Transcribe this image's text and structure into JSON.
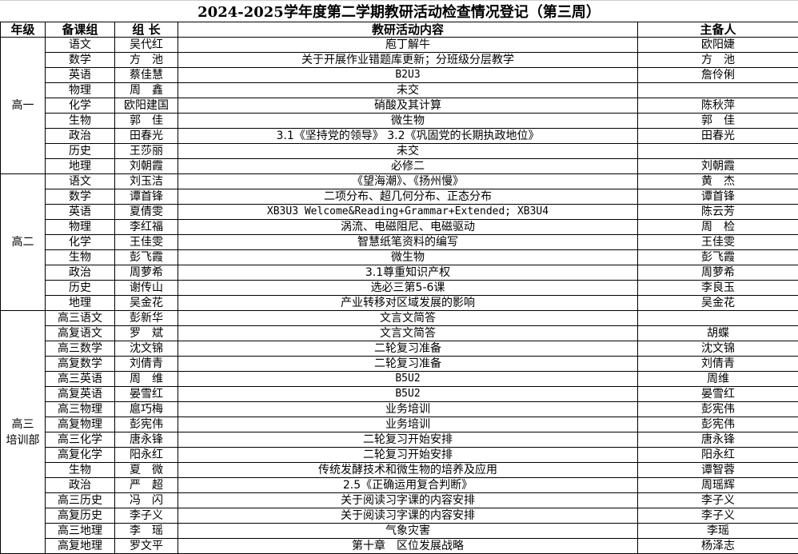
{
  "title": "2024-2025学年度第二学期教研活动检查情况登记（第三周）",
  "headers": [
    "年级",
    "备课组",
    "组 长",
    "教研活动内容",
    "主备人"
  ],
  "sections": [
    {
      "grade": "高一",
      "rows": [
        {
          "group": "语文",
          "leader": "吴代红",
          "content": "庖丁解牛",
          "preparer": "欧阳婕"
        },
        {
          "group": "数学",
          "leader": "方　池",
          "content": "关于开展作业错题库更新；分班级分层教学",
          "preparer": "方　池"
        },
        {
          "group": "英语",
          "leader": "蔡佳慧",
          "content": "B2U3",
          "preparer": "詹伶俐"
        },
        {
          "group": "物理",
          "leader": "周　鑫",
          "content": "未交",
          "preparer": ""
        },
        {
          "group": "化学",
          "leader": "欧阳建国",
          "content": "硝酸及其计算",
          "preparer": "陈秋萍"
        },
        {
          "group": "生物",
          "leader": "郭　佳",
          "content": "微生物",
          "preparer": "郭　佳"
        },
        {
          "group": "政治",
          "leader": "田春光",
          "content": "3.1《坚持党的领导》 3.2《巩固党的长期执政地位》",
          "preparer": "田春光"
        },
        {
          "group": "历史",
          "leader": "王莎丽",
          "content": "未交",
          "preparer": ""
        },
        {
          "group": "地理",
          "leader": "刘朝霞",
          "content": "必修二",
          "preparer": "刘朝霞"
        }
      ]
    },
    {
      "grade": "高二",
      "rows": [
        {
          "group": "语文",
          "leader": "刘玉洁",
          "content": "《望海潮》、《扬州慢》",
          "preparer": "黄　杰"
        },
        {
          "group": "数学",
          "leader": "谭首锋",
          "content": "二项分布、超几何分布、正态分布",
          "preparer": "谭首锋"
        },
        {
          "group": "英语",
          "leader": "夏倩雯",
          "content": "XB3U3 Welcome&Reading+Grammar+Extended; XB3U4",
          "preparer": "陈云芳"
        },
        {
          "group": "物理",
          "leader": "李红福",
          "content": "涡流、电磁阻尼、电磁驱动",
          "preparer": "周　检"
        },
        {
          "group": "化学",
          "leader": "王佳雯",
          "content": "智慧纸笔资料的编写",
          "preparer": "王佳雯"
        },
        {
          "group": "生物",
          "leader": "彭飞霞",
          "content": "微生物",
          "preparer": "彭飞霞"
        },
        {
          "group": "政治",
          "leader": "周萝希",
          "content": "3.1尊重知识产权",
          "preparer": "周萝希"
        },
        {
          "group": "历史",
          "leader": "谢传山",
          "content": "选必三第5-6课",
          "preparer": "李良玉"
        },
        {
          "group": "地理",
          "leader": "吴金花",
          "content": "产业转移对区域发展的影响",
          "preparer": "吴金花"
        }
      ]
    },
    {
      "grade": "高三\n培训部",
      "rows": [
        {
          "group": "高三语文",
          "leader": "彭新华",
          "content": "文言文简答",
          "preparer": ""
        },
        {
          "group": "高复语文",
          "leader": "罗　斌",
          "content": "文言文简答",
          "preparer": "胡蝶"
        },
        {
          "group": "高三数学",
          "leader": "沈文锦",
          "content": "二轮复习准备",
          "preparer": "沈文锦"
        },
        {
          "group": "高复数学",
          "leader": "刘倩青",
          "content": "二轮复习准备",
          "preparer": "刘倩青"
        },
        {
          "group": "高三英语",
          "leader": "周　维",
          "content": "B5U2",
          "preparer": "周维"
        },
        {
          "group": "高复英语",
          "leader": "晏雪红",
          "content": "B5U2",
          "preparer": "晏雪红"
        },
        {
          "group": "高三物理",
          "leader": "扈巧梅",
          "content": "业务培训",
          "preparer": "彭宪伟"
        },
        {
          "group": "高复物理",
          "leader": "彭宪伟",
          "content": "业务培训",
          "preparer": "彭宪伟"
        },
        {
          "group": "高三化学",
          "leader": "唐永锋",
          "content": "二轮复习开始安排",
          "preparer": "唐永锋"
        },
        {
          "group": "高复化学",
          "leader": "阳永红",
          "content": "二轮复习开始安排",
          "preparer": "阳永红"
        },
        {
          "group": "生物",
          "leader": "夏　微",
          "content": "传统发酵技术和微生物的培养及应用",
          "preparer": "谭智蓉"
        },
        {
          "group": "政治",
          "leader": "严　超",
          "content": "2.5《正确运用复合判断》",
          "preparer": "周瑶辉"
        },
        {
          "group": "高三历史",
          "leader": "冯　闪",
          "content": "关于阅读习字课的内容安排",
          "preparer": "李子义"
        },
        {
          "group": "高复历史",
          "leader": "李子义",
          "content": "关于阅读习字课的内容安排",
          "preparer": "李子义"
        },
        {
          "group": "高三地理",
          "leader": "李　瑶",
          "content": "气象灾害",
          "preparer": "李瑶"
        },
        {
          "group": "高复地理",
          "leader": "罗文平",
          "content": "第十章　区位发展战略",
          "preparer": "杨泽志"
        }
      ]
    }
  ]
}
